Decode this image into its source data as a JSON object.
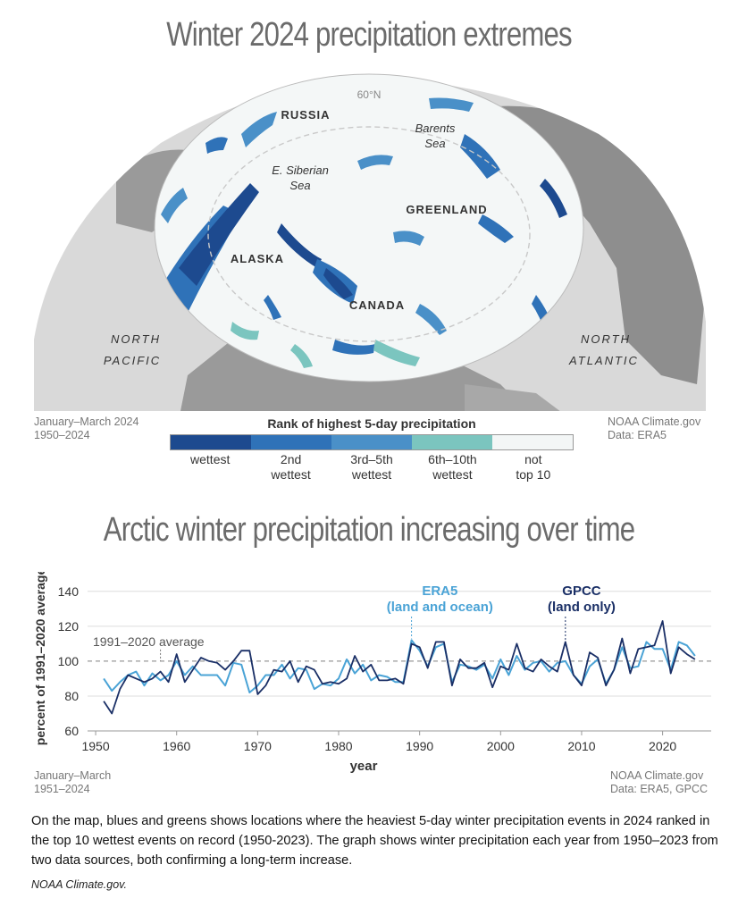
{
  "map_panel": {
    "title": "Winter 2024 precipitation extremes",
    "period": "January–March 2024",
    "baseline": "1950–2024",
    "credit": "NOAA Climate.gov",
    "data_source": "Data: ERA5",
    "labels": {
      "russia": "RUSSIA",
      "barents": "Barents",
      "barents2": "Sea",
      "siberian": "E. Siberian",
      "siberian2": "Sea",
      "greenland": "GREENLAND",
      "alaska": "ALASKA",
      "canada": "CANADA",
      "north_pacific_1": "NORTH",
      "north_pacific_2": "PACIFIC",
      "north_atlantic_1": "NORTH",
      "north_atlantic_2": "ATLANTIC",
      "latitude": "60°N"
    },
    "legend": {
      "title": "Rank of highest 5-day precipitation",
      "colors": [
        "#1d4a8f",
        "#2f72b8",
        "#4a90c8",
        "#7bc5bf",
        "#f3f6f6"
      ],
      "items": [
        {
          "line1": "wettest",
          "line2": ""
        },
        {
          "line1": "2nd",
          "line2": "wettest"
        },
        {
          "line1": "3rd–5th",
          "line2": "wettest"
        },
        {
          "line1": "6th–10th",
          "line2": "wettest"
        },
        {
          "line1": "not",
          "line2": "top 10"
        }
      ]
    }
  },
  "chart_panel": {
    "title": "Arctic winter precipitation increasing over time",
    "period": "January–March",
    "years": "1951–2024",
    "credit": "NOAA Climate.gov",
    "data_source": "Data: ERA5, GPCC"
  },
  "chart_data": {
    "type": "line",
    "xlabel": "year",
    "ylabel": "percent of 1991–2020 average",
    "xlim": [
      1949,
      2026
    ],
    "ylim": [
      60,
      145
    ],
    "xticks": [
      1950,
      1960,
      1970,
      1980,
      1990,
      2000,
      2010,
      2020
    ],
    "yticks": [
      60,
      80,
      100,
      120,
      140
    ],
    "grid": "horizontal",
    "reference_line": {
      "value": 100,
      "label": "1991–2020 average"
    },
    "x": [
      1951,
      1952,
      1953,
      1954,
      1955,
      1956,
      1957,
      1958,
      1959,
      1960,
      1961,
      1962,
      1963,
      1964,
      1965,
      1966,
      1967,
      1968,
      1969,
      1970,
      1971,
      1972,
      1973,
      1974,
      1975,
      1976,
      1977,
      1978,
      1979,
      1980,
      1981,
      1982,
      1983,
      1984,
      1985,
      1986,
      1987,
      1988,
      1989,
      1990,
      1991,
      1992,
      1993,
      1994,
      1995,
      1996,
      1997,
      1998,
      1999,
      2000,
      2001,
      2002,
      2003,
      2004,
      2005,
      2006,
      2007,
      2008,
      2009,
      2010,
      2011,
      2012,
      2013,
      2014,
      2015,
      2016,
      2017,
      2018,
      2019,
      2020,
      2021,
      2022,
      2023,
      2024
    ],
    "series": [
      {
        "name": "ERA5",
        "annotation": [
          "ERA5",
          "(land and ocean)"
        ],
        "color": "#4aa3d6",
        "values": [
          90,
          83,
          88,
          92,
          94,
          86,
          93,
          89,
          92,
          100,
          92,
          97,
          92,
          92,
          92,
          86,
          99,
          98,
          82,
          86,
          92,
          92,
          98,
          90,
          96,
          95,
          84,
          87,
          86,
          90,
          101,
          93,
          98,
          89,
          92,
          91,
          88,
          88,
          112,
          106,
          97,
          108,
          110,
          88,
          98,
          97,
          95,
          98,
          90,
          101,
          92,
          103,
          95,
          99,
          100,
          94,
          99,
          100,
          92,
          87,
          97,
          101,
          87,
          95,
          108,
          96,
          97,
          111,
          107,
          107,
          95,
          111,
          109,
          103
        ]
      },
      {
        "name": "GPCC",
        "annotation": [
          "GPCC",
          "(land only)"
        ],
        "color": "#1a2f66",
        "values": [
          77,
          70,
          84,
          92,
          90,
          88,
          90,
          94,
          88,
          104,
          88,
          95,
          102,
          100,
          99,
          95,
          100,
          106,
          106,
          81,
          86,
          95,
          94,
          100,
          88,
          97,
          95,
          87,
          88,
          87,
          90,
          103,
          94,
          98,
          89,
          89,
          90,
          87,
          110,
          108,
          96,
          111,
          111,
          86,
          101,
          96,
          96,
          99,
          85,
          97,
          95,
          110,
          96,
          94,
          101,
          97,
          94,
          111,
          92,
          86,
          105,
          102,
          86,
          95,
          113,
          93,
          107,
          108,
          109,
          123,
          93,
          108,
          104,
          101
        ]
      }
    ]
  }
}
